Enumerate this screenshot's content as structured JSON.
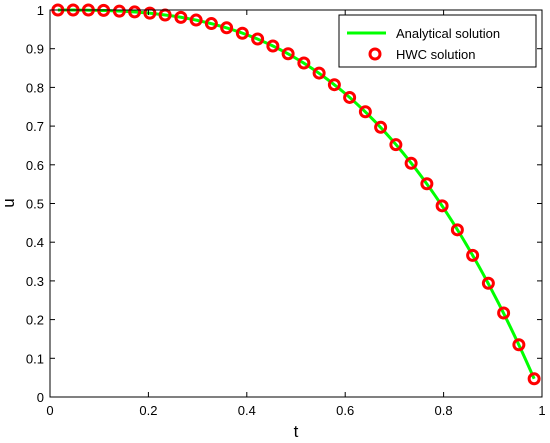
{
  "chart_data": {
    "type": "line",
    "xlabel": "t",
    "ylabel": "u",
    "xlim": [
      0,
      1
    ],
    "ylim": [
      0,
      1
    ],
    "x_ticks": [
      "0",
      "0.2",
      "0.4",
      "0.6",
      "0.8",
      "1"
    ],
    "y_ticks": [
      "0",
      "0.1",
      "0.2",
      "0.3",
      "0.4",
      "0.5",
      "0.6",
      "0.7",
      "0.8",
      "0.9",
      "1"
    ],
    "grid": false,
    "legend_position": "top-right",
    "series": [
      {
        "name": "Analytical solution",
        "style": "line",
        "color": "#00ff00",
        "function": "u = 1 - t^3",
        "x": [
          0.016,
          0.1,
          0.2,
          0.3,
          0.4,
          0.5,
          0.6,
          0.7,
          0.8,
          0.9,
          0.984
        ],
        "y": [
          1.0,
          0.999,
          0.992,
          0.973,
          0.936,
          0.875,
          0.784,
          0.657,
          0.488,
          0.271,
          0.047
        ]
      },
      {
        "name": "HWC solution",
        "style": "markers",
        "color": "#ff0000",
        "x": [
          0.016,
          0.047,
          0.078,
          0.109,
          0.141,
          0.172,
          0.203,
          0.234,
          0.266,
          0.297,
          0.328,
          0.359,
          0.391,
          0.422,
          0.453,
          0.484,
          0.516,
          0.547,
          0.578,
          0.609,
          0.641,
          0.672,
          0.703,
          0.734,
          0.766,
          0.797,
          0.828,
          0.859,
          0.891,
          0.922,
          0.953,
          0.984
        ],
        "y": [
          1.0,
          1.0,
          1.0,
          0.999,
          0.997,
          0.995,
          0.992,
          0.987,
          0.981,
          0.974,
          0.965,
          0.954,
          0.94,
          0.925,
          0.907,
          0.887,
          0.863,
          0.837,
          0.807,
          0.774,
          0.737,
          0.697,
          0.652,
          0.604,
          0.551,
          0.494,
          0.432,
          0.366,
          0.294,
          0.217,
          0.135,
          0.047
        ]
      }
    ]
  }
}
